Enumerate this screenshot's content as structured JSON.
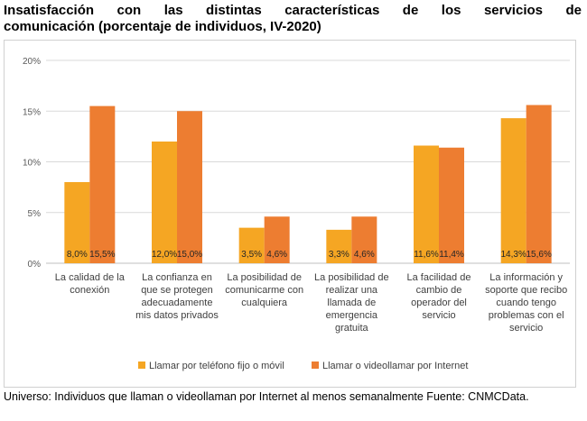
{
  "title_line1": "Insatisfacción con las distintas características de los servicios de",
  "title_line2": "comunicación (porcentaje de individuos, IV-2020)",
  "footnote": "Universo: Individuos que llaman o videollaman por Internet al menos semanalmente Fuente: CNMCData.",
  "colors": {
    "series1": "#f5a623",
    "series2": "#ed7d31",
    "grid": "#d9d9d9",
    "axis_text": "#595959"
  },
  "chart_data": {
    "type": "bar",
    "title": "Insatisfacción con las distintas características de los servicios de comunicación (porcentaje de individuos, IV-2020)",
    "categories": [
      [
        "La calidad de la",
        "conexión"
      ],
      [
        "La confianza en",
        "que se protegen",
        "adecuadamente",
        "mis datos privados"
      ],
      [
        "La posibilidad de",
        "comunicarme con",
        "cualquiera"
      ],
      [
        "La posibilidad de",
        "realizar una",
        "llamada de",
        "emergencia",
        "gratuita"
      ],
      [
        "La facilidad de",
        "cambio de",
        "operador del",
        "servicio"
      ],
      [
        "La información y",
        "soporte que recibo",
        "cuando tengo",
        "problemas con el",
        "servicio"
      ]
    ],
    "series": [
      {
        "name": "Llamar por teléfono fijo o móvil",
        "values": [
          8.0,
          12.0,
          3.5,
          3.3,
          11.6,
          14.3
        ],
        "labels": [
          "8,0%",
          "12,0%",
          "3,5%",
          "3,3%",
          "11,6%",
          "14,3%"
        ]
      },
      {
        "name": "Llamar o videollamar por Internet",
        "values": [
          15.5,
          15.0,
          4.6,
          4.6,
          11.4,
          15.6
        ],
        "labels": [
          "15,5%",
          "15,0%",
          "4,6%",
          "4,6%",
          "11,4%",
          "15,6%"
        ]
      }
    ],
    "yticks": [
      "0%",
      "5%",
      "10%",
      "15%",
      "20%"
    ],
    "ylim": [
      0,
      20
    ],
    "grid": true,
    "legend_position": "bottom"
  }
}
